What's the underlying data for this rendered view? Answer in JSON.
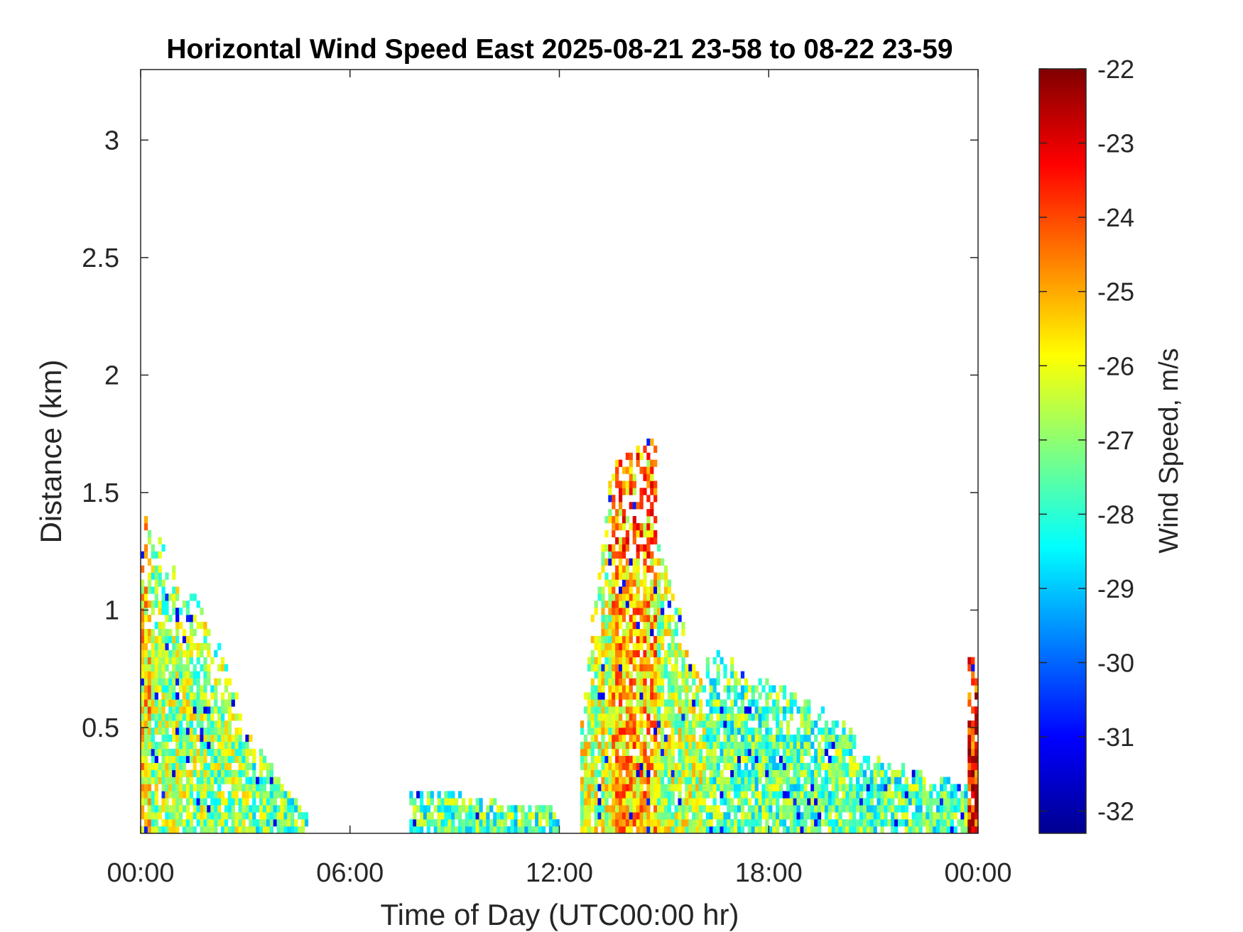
{
  "chart_data": {
    "type": "heatmap",
    "title": "Horizontal Wind Speed East 2025-08-21 23-58 to 08-22 23-59",
    "xlabel": "Time of Day (UTC00:00 hr)",
    "ylabel": "Distance (km)",
    "xlim_hours": [
      0,
      24
    ],
    "ylim_km": [
      0.05,
      3.3
    ],
    "x_ticks": [
      {
        "value": 0,
        "label": "00:00"
      },
      {
        "value": 6,
        "label": "06:00"
      },
      {
        "value": 12,
        "label": "12:00"
      },
      {
        "value": 18,
        "label": "18:00"
      },
      {
        "value": 24,
        "label": "00:00"
      }
    ],
    "y_ticks": [
      {
        "value": 0.5,
        "label": "0.5"
      },
      {
        "value": 1,
        "label": "1"
      },
      {
        "value": 1.5,
        "label": "1.5"
      },
      {
        "value": 2,
        "label": "2"
      },
      {
        "value": 2.5,
        "label": "2.5"
      },
      {
        "value": 3,
        "label": "3"
      }
    ],
    "colorbar": {
      "label": "Wind Speed, m/s",
      "range": [
        -32.3,
        -22.0
      ],
      "colormap": "jet",
      "ticks": [
        "-22",
        "-23",
        "-24",
        "-25",
        "-26",
        "-27",
        "-28",
        "-29",
        "-30",
        "-31",
        "-32"
      ],
      "tick_values": [
        -22,
        -23,
        -24,
        -25,
        -26,
        -27,
        -28,
        -29,
        -30,
        -31,
        -32
      ]
    },
    "grid": false,
    "data_regions": [
      {
        "x_start": 0.0,
        "x_end": 0.35,
        "y_top_km": 1.42,
        "y_top_end_km": 1.35,
        "mean_value": -25.6
      },
      {
        "x_start": 0.35,
        "x_end": 2.0,
        "y_top_km": 1.35,
        "y_top_end_km": 0.95,
        "mean_value": -26.8
      },
      {
        "x_start": 2.0,
        "x_end": 3.2,
        "y_top_km": 0.95,
        "y_top_end_km": 0.45,
        "mean_value": -27.0
      },
      {
        "x_start": 3.2,
        "x_end": 4.8,
        "y_top_km": 0.45,
        "y_top_end_km": 0.12,
        "mean_value": -27.4
      },
      {
        "x_start": 7.7,
        "x_end": 12.0,
        "y_top_km": 0.25,
        "y_top_end_km": 0.15,
        "mean_value": -27.6
      },
      {
        "x_start": 12.6,
        "x_end": 13.5,
        "y_top_km": 0.55,
        "y_top_end_km": 1.62,
        "mean_value": -26.4
      },
      {
        "x_start": 13.5,
        "x_end": 14.8,
        "y_top_km": 1.62,
        "y_top_end_km": 1.75,
        "mean_value": -25.2
      },
      {
        "x_start": 14.8,
        "x_end": 16.2,
        "y_top_km": 1.3,
        "y_top_end_km": 0.65,
        "mean_value": -26.6
      },
      {
        "x_start": 16.2,
        "x_end": 20.5,
        "y_top_km": 0.85,
        "y_top_end_km": 0.5,
        "mean_value": -27.5
      },
      {
        "x_start": 20.5,
        "x_end": 23.7,
        "y_top_km": 0.4,
        "y_top_end_km": 0.25,
        "mean_value": -27.6
      },
      {
        "x_start": 23.7,
        "x_end": 24.0,
        "y_top_km": 0.8,
        "y_top_end_km": 0.8,
        "mean_value": -23.5
      }
    ],
    "features": [
      {
        "x_start": 13.3,
        "x_end": 14.9,
        "y_start_km": 1.2,
        "y_end_km": 1.7,
        "mean_value": -23.7
      },
      {
        "x_start": 23.9,
        "x_end": 24.0,
        "y_start_km": 0.05,
        "y_end_km": 0.55,
        "mean_value": -23.0
      }
    ]
  }
}
